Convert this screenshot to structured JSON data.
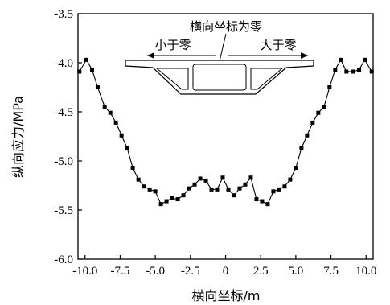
{
  "chart_data": {
    "type": "line",
    "xlabel": "横向坐标/m",
    "ylabel": "纵向应力/MPa",
    "xlim": [
      -10.5,
      10.5
    ],
    "ylim": [
      -6.0,
      -3.5
    ],
    "xticks": [
      "-10.0",
      "-7.5",
      "-5.0",
      "-2.5",
      "0",
      "2.5",
      "5.0",
      "7.5",
      "10.0"
    ],
    "xtick_values": [
      -10,
      -7.5,
      -5,
      -2.5,
      0,
      2.5,
      5,
      7.5,
      10
    ],
    "yticks": [
      "-3.5",
      "-4.0",
      "-4.5",
      "-5.0",
      "-5.5",
      "-6.0"
    ],
    "ytick_values": [
      -3.5,
      -4.0,
      -4.5,
      -5.0,
      -5.5,
      -6.0
    ],
    "grid": false,
    "marker": "square",
    "series": [
      {
        "x": [
          -10.4,
          -9.9,
          -9.5,
          -9.1,
          -8.6,
          -8.2,
          -7.8,
          -7.4,
          -7.0,
          -6.6,
          -6.2,
          -5.8,
          -5.4,
          -5.0,
          -4.6,
          -4.2,
          -3.8,
          -3.4,
          -3.0,
          -2.6,
          -2.2,
          -1.8,
          -1.4,
          -1.0,
          -0.6,
          -0.2,
          0.2,
          0.6,
          1.0,
          1.4,
          1.8,
          2.2,
          2.6,
          3.0,
          3.4,
          3.8,
          4.2,
          4.6,
          5.0,
          5.4,
          5.8,
          6.2,
          6.6,
          7.0,
          7.4,
          7.8,
          8.2,
          8.6,
          9.1,
          9.5,
          9.9,
          10.4
        ],
        "values": [
          -4.09,
          -3.97,
          -4.07,
          -4.25,
          -4.45,
          -4.51,
          -4.61,
          -4.74,
          -4.87,
          -5.07,
          -5.19,
          -5.26,
          -5.29,
          -5.31,
          -5.44,
          -5.41,
          -5.38,
          -5.39,
          -5.35,
          -5.28,
          -5.24,
          -5.18,
          -5.2,
          -5.29,
          -5.29,
          -5.17,
          -5.29,
          -5.35,
          -5.28,
          -5.24,
          -5.17,
          -5.39,
          -5.41,
          -5.44,
          -5.31,
          -5.29,
          -5.26,
          -5.19,
          -5.07,
          -4.87,
          -4.74,
          -4.61,
          -4.51,
          -4.45,
          -4.25,
          -4.07,
          -3.97,
          -4.09,
          -4.09,
          -4.07,
          -3.97,
          -4.09
        ]
      }
    ],
    "annotation": {
      "title": "横向坐标为零",
      "left": "小于零",
      "right": "大于零"
    }
  }
}
